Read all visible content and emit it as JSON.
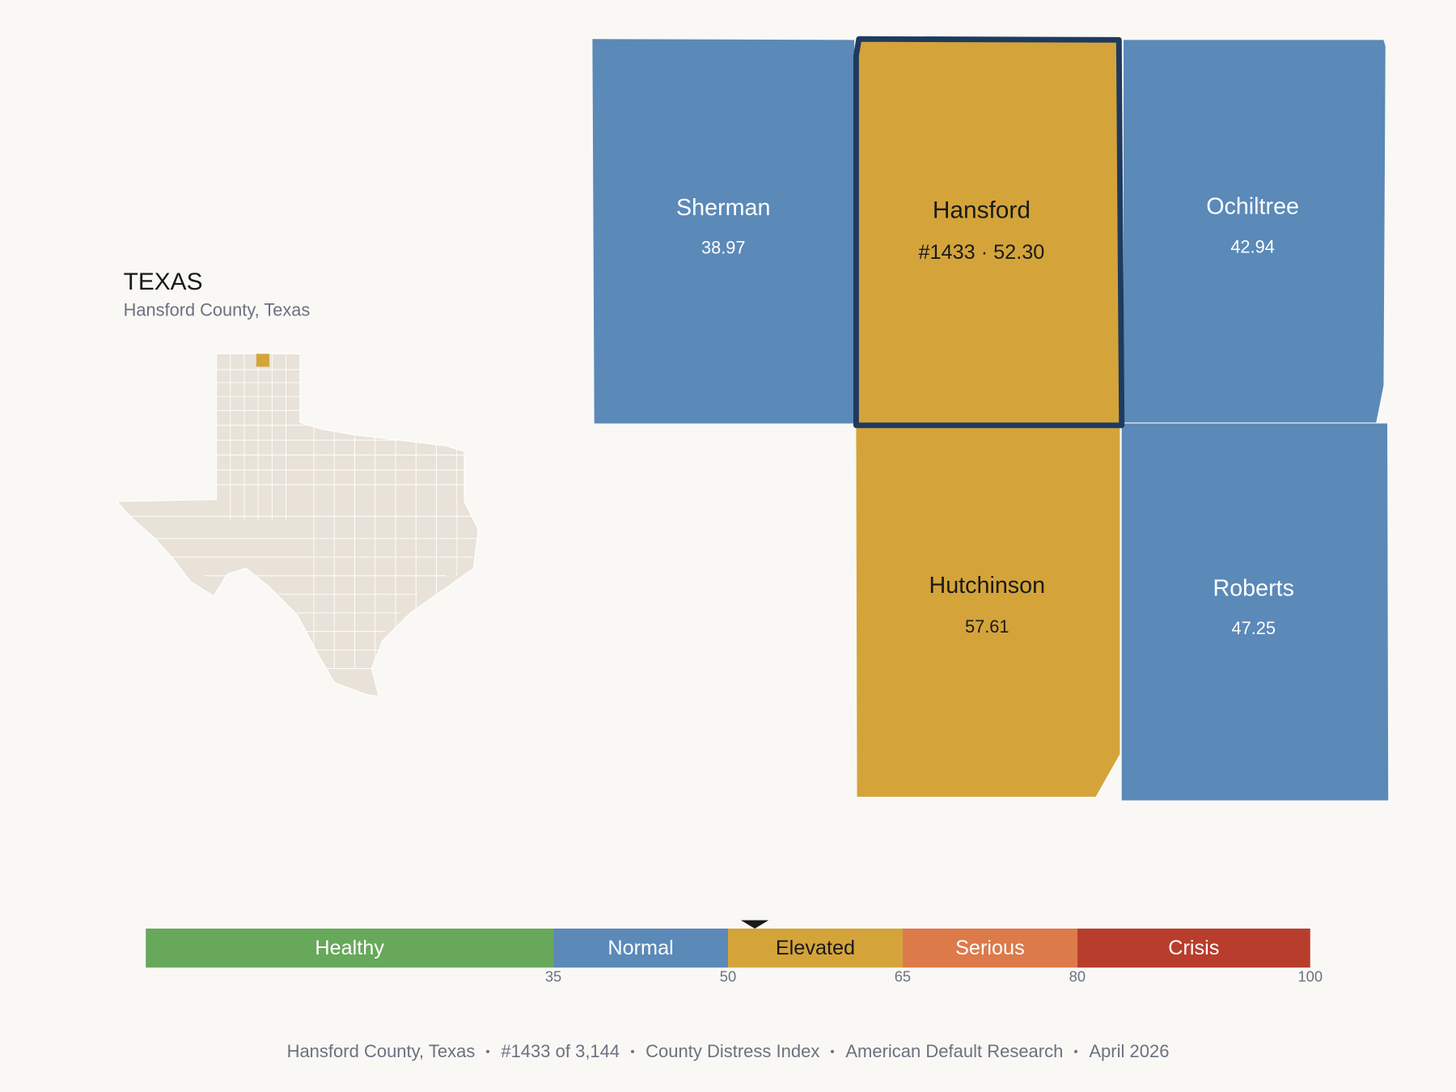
{
  "header": {
    "title": "TEXAS",
    "subtitle": "Hansford County, Texas"
  },
  "counties": [
    {
      "name": "Sherman",
      "value": 38.97,
      "color": "#5b89b8",
      "text_color": "#ffffff"
    },
    {
      "name": "Hansford",
      "value_label": "#1433 · 52.30",
      "color": "#d4a43a",
      "text_color": "#1a1a1a",
      "selected": true
    },
    {
      "name": "Ochiltree",
      "value": 42.94,
      "color": "#5b89b8",
      "text_color": "#ffffff"
    },
    {
      "name": "Hutchinson",
      "value": 57.61,
      "color": "#d4a43a",
      "text_color": "#1a1a1a"
    },
    {
      "name": "Roberts",
      "value": 47.25,
      "color": "#5b89b8",
      "text_color": "#ffffff"
    }
  ],
  "scale": {
    "min": 0,
    "max": 100,
    "ticks": [
      35,
      50,
      65,
      80,
      100
    ],
    "marker": 52.3,
    "bands": [
      {
        "name": "Healthy",
        "to": 35,
        "color": "#67a85a",
        "text_color": "#ffffff"
      },
      {
        "name": "Normal",
        "to": 50,
        "color": "#5b89b8",
        "text_color": "#ffffff"
      },
      {
        "name": "Elevated",
        "to": 65,
        "color": "#d4a43a",
        "text_color": "#1a1a1a"
      },
      {
        "name": "Serious",
        "to": 80,
        "color": "#dc7a4a",
        "text_color": "#ffffff"
      },
      {
        "name": "Crisis",
        "to": 100,
        "color": "#b93d2c",
        "text_color": "#ffffff"
      }
    ]
  },
  "footer": [
    "Hansford County, Texas",
    "#1433 of 3,144",
    "County Distress Index",
    "American Default Research",
    "April 2026"
  ]
}
